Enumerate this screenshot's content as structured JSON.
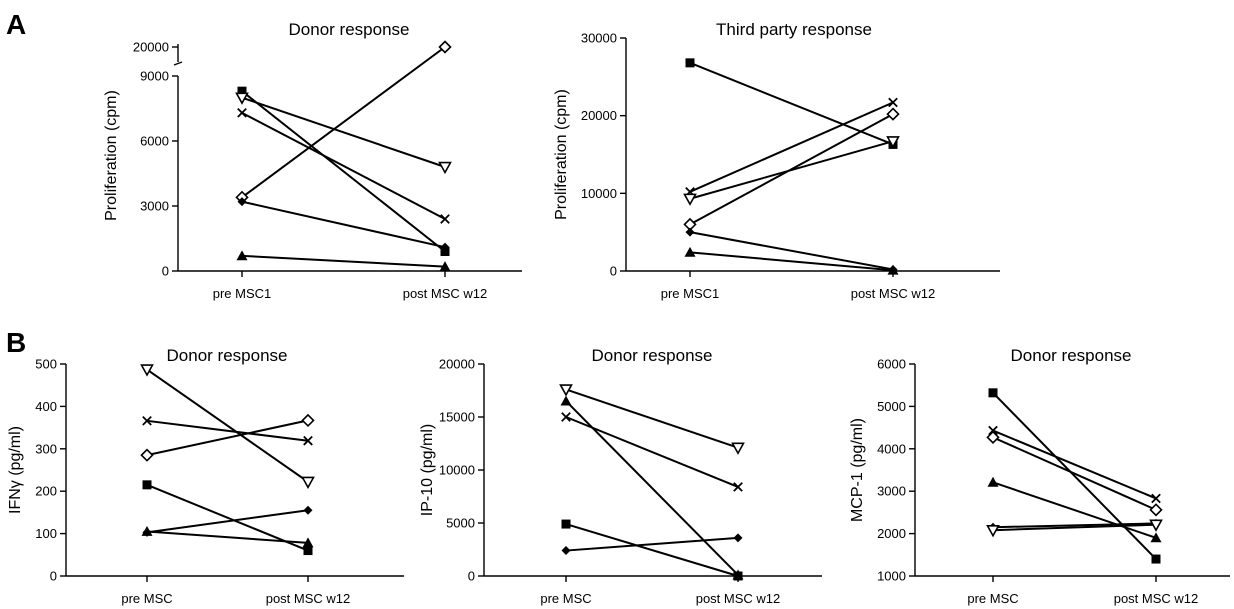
{
  "panel_labels": [
    "A",
    "B"
  ],
  "chart_data": [
    {
      "type": "line",
      "panel": "A",
      "title": "Donor response",
      "ylabel": "Proliferation (cpm)",
      "categories": [
        "pre MSC1",
        "post MSC w12"
      ],
      "y_ticks": [
        0,
        3000,
        6000,
        9000,
        20000
      ],
      "y_axis_break": [
        9000,
        20000
      ],
      "ylim": [
        0,
        20000
      ],
      "series": [
        {
          "marker": "square",
          "values": [
            8300,
            900
          ]
        },
        {
          "marker": "triangle-down",
          "values": [
            8000,
            4800
          ]
        },
        {
          "marker": "x",
          "values": [
            7300,
            2400
          ]
        },
        {
          "marker": "diamond-open",
          "values": [
            3400,
            20000
          ]
        },
        {
          "marker": "diamond-filled",
          "values": [
            3200,
            1100
          ]
        },
        {
          "marker": "triangle",
          "values": [
            700,
            200
          ]
        }
      ]
    },
    {
      "type": "line",
      "panel": "A",
      "title": "Third party response",
      "ylabel": "Proliferation (cpm)",
      "categories": [
        "pre MSC1",
        "post MSC w12"
      ],
      "y_ticks": [
        0,
        10000,
        20000,
        30000
      ],
      "ylim": [
        0,
        30000
      ],
      "series": [
        {
          "marker": "square",
          "values": [
            26800,
            16300
          ]
        },
        {
          "marker": "x",
          "values": [
            10200,
            21700
          ]
        },
        {
          "marker": "triangle-down",
          "values": [
            9300,
            16700
          ]
        },
        {
          "marker": "diamond-open",
          "values": [
            6000,
            20200
          ]
        },
        {
          "marker": "diamond-filled",
          "values": [
            5000,
            200
          ]
        },
        {
          "marker": "triangle",
          "values": [
            2400,
            100
          ]
        }
      ]
    },
    {
      "type": "line",
      "panel": "B",
      "title": "Donor response",
      "ylabel": "IFNγ (pg/ml)",
      "categories": [
        "pre MSC",
        "post MSC w12"
      ],
      "y_ticks": [
        0,
        100,
        200,
        300,
        400,
        500
      ],
      "ylim": [
        0,
        500
      ],
      "series": [
        {
          "marker": "triangle-down",
          "values": [
            487,
            222
          ]
        },
        {
          "marker": "x",
          "values": [
            366,
            319
          ]
        },
        {
          "marker": "diamond-open",
          "values": [
            285,
            367
          ]
        },
        {
          "marker": "square",
          "values": [
            215,
            60
          ]
        },
        {
          "marker": "triangle",
          "values": [
            105,
            78
          ]
        },
        {
          "marker": "diamond-filled",
          "values": [
            103,
            155
          ]
        }
      ]
    },
    {
      "type": "line",
      "panel": "B",
      "title": "Donor response",
      "ylabel": "IP-10 (pg/ml)",
      "categories": [
        "pre MSC",
        "post MSC w12"
      ],
      "y_ticks": [
        0,
        5000,
        10000,
        15000,
        20000
      ],
      "ylim": [
        0,
        20000
      ],
      "series": [
        {
          "marker": "triangle-down",
          "values": [
            17600,
            12100
          ]
        },
        {
          "marker": "triangle",
          "values": [
            16500,
            100
          ]
        },
        {
          "marker": "x",
          "values": [
            15000,
            8400
          ]
        },
        {
          "marker": "square",
          "values": [
            4900,
            0
          ]
        },
        {
          "marker": "diamond-filled",
          "values": [
            2400,
            3600
          ]
        }
      ]
    },
    {
      "type": "line",
      "panel": "B",
      "title": "Donor response",
      "ylabel": "MCP-1 (pg/ml)",
      "categories": [
        "pre MSC",
        "post MSC w12"
      ],
      "y_ticks": [
        1000,
        2000,
        3000,
        4000,
        5000,
        6000
      ],
      "ylim": [
        1000,
        6000
      ],
      "series": [
        {
          "marker": "square",
          "values": [
            5320,
            1400
          ]
        },
        {
          "marker": "x",
          "values": [
            4430,
            2830
          ]
        },
        {
          "marker": "diamond-open",
          "values": [
            4270,
            2560
          ]
        },
        {
          "marker": "triangle",
          "values": [
            3210,
            1900
          ]
        },
        {
          "marker": "diamond-filled",
          "values": [
            2150,
            2240
          ]
        },
        {
          "marker": "triangle-down",
          "values": [
            2080,
            2210
          ]
        }
      ]
    }
  ]
}
